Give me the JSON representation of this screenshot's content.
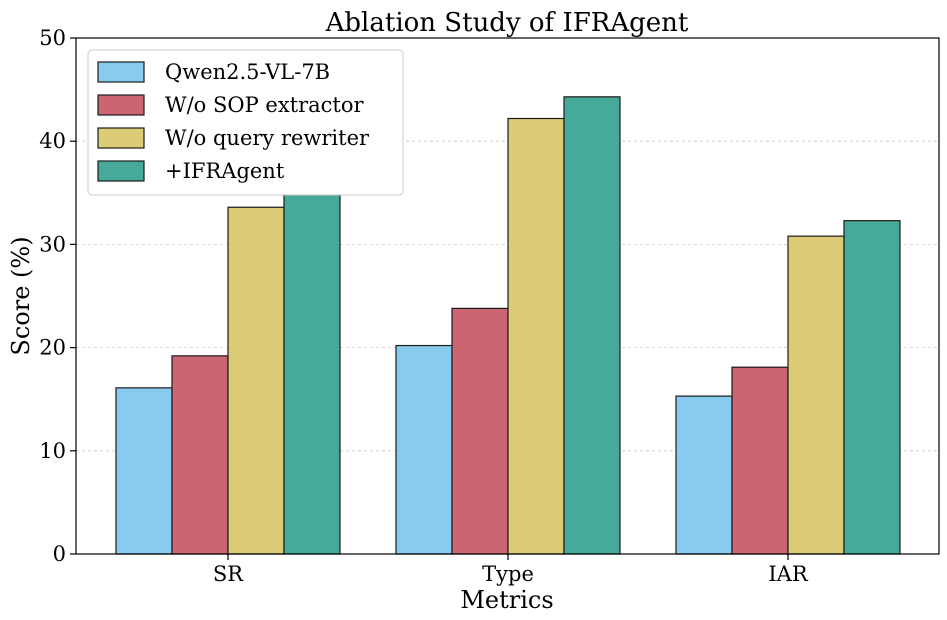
{
  "chart_data": {
    "type": "bar",
    "title": "Ablation Study of IFRAgent",
    "xlabel": "Metrics",
    "ylabel": "Score (%)",
    "categories": [
      "SR",
      "Type",
      "IAR"
    ],
    "ylim": [
      0,
      50
    ],
    "yticks": [
      "0",
      "10",
      "20",
      "30",
      "40",
      "50"
    ],
    "grid": "horizontal dashed",
    "legend_position": "top-left",
    "series": [
      {
        "name": "Qwen2.5-VL-7B",
        "color": "#89CBEE",
        "values": [
          16.1,
          20.2,
          15.3
        ]
      },
      {
        "name": "W/o SOP extractor",
        "color": "#CC6572",
        "values": [
          19.2,
          23.8,
          18.1
        ]
      },
      {
        "name": "W/o query rewriter",
        "color": "#DCCC78",
        "values": [
          33.6,
          42.2,
          30.8
        ]
      },
      {
        "name": "+IFRAgent",
        "color": "#45AA99",
        "values": [
          34.8,
          44.3,
          32.3
        ]
      }
    ]
  }
}
